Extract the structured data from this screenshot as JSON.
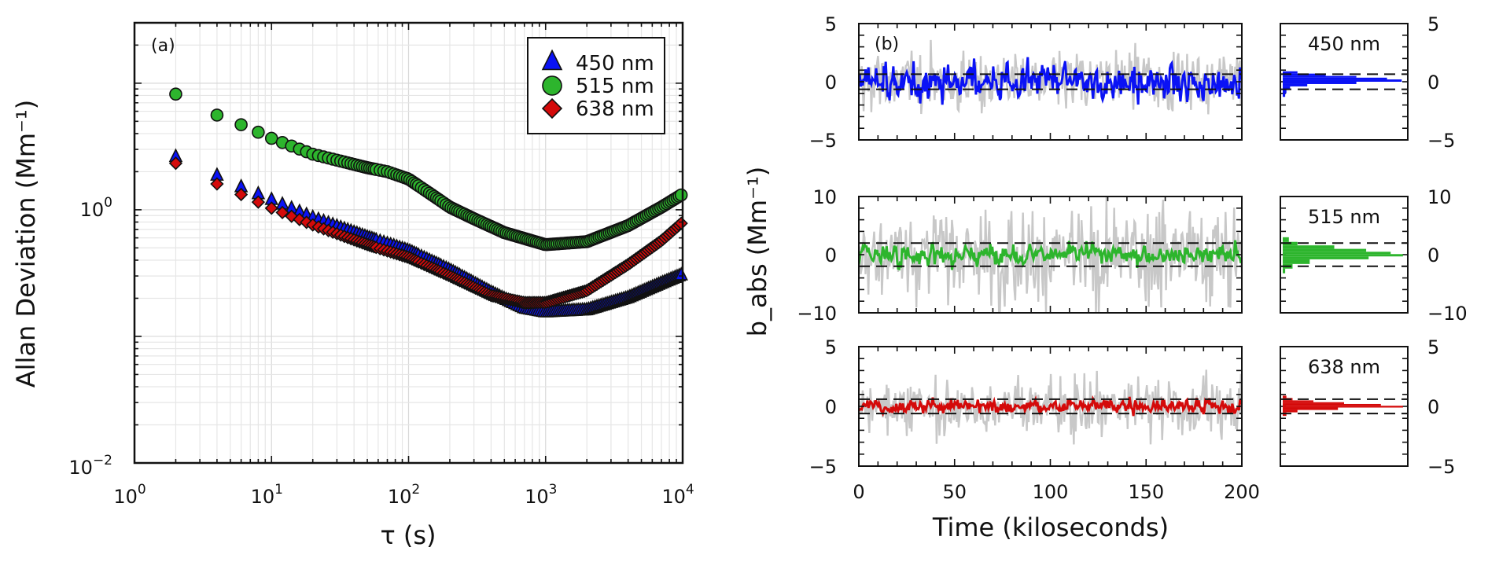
{
  "chart_data": [
    {
      "id": "a",
      "type": "scatter",
      "panel_label": "(a)",
      "title": "",
      "xlabel": "τ (s)",
      "ylabel": "Allan Deviation (Mm⁻¹)",
      "xscale": "log",
      "yscale": "log",
      "xlim": [
        1,
        10000
      ],
      "ylim": [
        0.01,
        30
      ],
      "grid": true,
      "legend_position": "top-right",
      "x_tick_labels": [
        {
          "value": 1,
          "base": "10",
          "exp": "0"
        },
        {
          "value": 10,
          "base": "10",
          "exp": "1"
        },
        {
          "value": 100,
          "base": "10",
          "exp": "2"
        },
        {
          "value": 1000,
          "base": "10",
          "exp": "3"
        },
        {
          "value": 10000,
          "base": "10",
          "exp": "4"
        }
      ],
      "y_tick_labels": [
        {
          "value": 1,
          "base": "10",
          "exp": "0"
        },
        {
          "value": 0.01,
          "base": "10",
          "exp": "−2"
        }
      ],
      "tau_sampling": "every 2 s from 2 s to 10000 s (markers thinned on log axis)",
      "series": [
        {
          "name": "450 nm",
          "marker": "triangle",
          "color": "#0a12f5",
          "tau": [
            2,
            4,
            6,
            8,
            10,
            20,
            50,
            100,
            200,
            400,
            700,
            1000,
            2000,
            4000,
            7000,
            10000
          ],
          "values": [
            2.6,
            1.85,
            1.5,
            1.32,
            1.19,
            0.86,
            0.6,
            0.47,
            0.33,
            0.22,
            0.165,
            0.154,
            0.16,
            0.2,
            0.26,
            0.305
          ]
        },
        {
          "name": "515 nm",
          "marker": "circle",
          "color": "#2db52d",
          "tau": [
            2,
            4,
            6,
            8,
            10,
            20,
            50,
            70,
            100,
            150,
            200,
            300,
            500,
            1000,
            2000,
            4000,
            7000,
            10000
          ],
          "values": [
            8.2,
            5.6,
            4.7,
            4.1,
            3.67,
            2.75,
            2.15,
            2.0,
            1.75,
            1.3,
            1.05,
            0.85,
            0.66,
            0.53,
            0.56,
            0.75,
            1.05,
            1.33
          ]
        },
        {
          "name": "638 nm",
          "marker": "diamond",
          "color": "#d40a0a",
          "tau": [
            2,
            4,
            6,
            8,
            10,
            20,
            50,
            100,
            200,
            400,
            700,
            1000,
            2000,
            4000,
            7000,
            10000
          ],
          "values": [
            2.33,
            1.6,
            1.32,
            1.15,
            1.03,
            0.76,
            0.53,
            0.42,
            0.3,
            0.21,
            0.185,
            0.185,
            0.23,
            0.37,
            0.57,
            0.8
          ]
        }
      ]
    },
    {
      "id": "b",
      "type": "line",
      "panel_label": "(b)",
      "xlabel": "Time (kiloseconds)",
      "ylabel": "b_abs (Mm⁻¹)",
      "xlim": [
        0,
        200
      ],
      "x_ticks": [
        0,
        50,
        100,
        150,
        200
      ],
      "grid": false,
      "subplots": [
        {
          "name": "450 nm",
          "color": "#0a12f5",
          "raw_color": "#c8c8c8",
          "ylim": [
            -5,
            5
          ],
          "y_ticks": [
            5,
            0,
            -5
          ],
          "y_tick_labels": [
            "5",
            "0",
            "−5"
          ],
          "raw_std": 1.3,
          "raw_range": [
            -5,
            4
          ],
          "smoothed_std": 0.75,
          "smoothed_range": [
            -3.3,
            2.2
          ],
          "dashed_lines": [
            0.65,
            -0.65
          ],
          "histogram": {
            "bin_edges": [
              -1.3,
              -1.0,
              -0.7,
              -0.4,
              -0.2,
              0.0,
              0.2,
              0.35,
              0.5,
              0.7,
              0.9
            ],
            "relative_counts": [
              0.02,
              0.03,
              0.06,
              0.2,
              0.6,
              0.97,
              0.85,
              0.6,
              0.35,
              0.12
            ]
          }
        },
        {
          "name": "515 nm",
          "color": "#2db52d",
          "raw_color": "#c8c8c8",
          "ylim": [
            -10,
            10
          ],
          "y_ticks": [
            10,
            0,
            -10
          ],
          "y_tick_labels": [
            "10",
            "0",
            "−10"
          ],
          "raw_std": 4.0,
          "raw_range": [
            -10,
            10
          ],
          "smoothed_std": 0.9,
          "smoothed_range": [
            -3.2,
            2.6
          ],
          "dashed_lines": [
            2.0,
            -2.0
          ],
          "histogram": {
            "bin_edges": [
              -3.2,
              -2.4,
              -1.6,
              -0.8,
              -0.3,
              0.1,
              0.5,
              1.0,
              1.6,
              2.2,
              3.0
            ],
            "relative_counts": [
              0.02,
              0.08,
              0.22,
              0.7,
              0.98,
              0.88,
              0.68,
              0.42,
              0.12,
              0.05
            ]
          }
        },
        {
          "name": "638 nm",
          "color": "#d40a0a",
          "raw_color": "#c8c8c8",
          "ylim": [
            -5,
            5
          ],
          "y_ticks": [
            5,
            0,
            -5
          ],
          "y_tick_labels": [
            "5",
            "0",
            "−5"
          ],
          "raw_std": 1.2,
          "raw_range": [
            -3.8,
            3.5
          ],
          "smoothed_std": 0.3,
          "smoothed_range": [
            -0.8,
            0.8
          ],
          "dashed_lines": [
            0.6,
            -0.6
          ],
          "histogram": {
            "bin_edges": [
              -0.8,
              -0.5,
              -0.3,
              -0.1,
              0.05,
              0.2,
              0.35,
              0.5,
              0.7,
              0.9
            ],
            "relative_counts": [
              0.03,
              0.12,
              0.45,
              0.98,
              0.8,
              0.5,
              0.25,
              0.08,
              0.03
            ]
          }
        }
      ]
    }
  ]
}
